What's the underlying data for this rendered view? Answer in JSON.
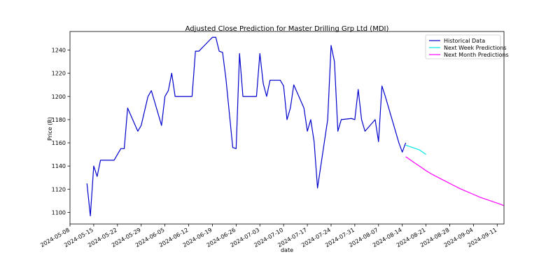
{
  "chart_data": {
    "type": "line",
    "title": "Adjusted Close Prediction for Master Drilling Grp Ltd (MDI)",
    "xlabel": "date",
    "ylabel": "Price (R)",
    "xlim": [
      "2024-05-08",
      "2024-09-13"
    ],
    "ylim": [
      1090,
      1256
    ],
    "x_ticks": [
      "2024-05-08",
      "2024-05-15",
      "2024-05-22",
      "2024-05-29",
      "2024-06-05",
      "2024-06-12",
      "2024-06-19",
      "2024-06-26",
      "2024-07-03",
      "2024-07-10",
      "2024-07-17",
      "2024-07-24",
      "2024-07-31",
      "2024-08-07",
      "2024-08-14",
      "2024-08-21",
      "2024-08-28",
      "2024-09-04",
      "2024-09-11"
    ],
    "y_ticks": [
      1100,
      1120,
      1140,
      1160,
      1180,
      1200,
      1220,
      1240
    ],
    "grid": false,
    "legend_position": "top-right",
    "series": [
      {
        "name": "Historical Data",
        "color": "#0000cc",
        "points": [
          [
            "2024-05-13",
            1125
          ],
          [
            "2024-05-14",
            1097
          ],
          [
            "2024-05-15",
            1140
          ],
          [
            "2024-05-16",
            1131
          ],
          [
            "2024-05-17",
            1145
          ],
          [
            "2024-05-20",
            1145
          ],
          [
            "2024-05-21",
            1145
          ],
          [
            "2024-05-23",
            1155
          ],
          [
            "2024-05-24",
            1155
          ],
          [
            "2024-05-25",
            1190
          ],
          [
            "2024-05-28",
            1170
          ],
          [
            "2024-05-29",
            1175
          ],
          [
            "2024-05-31",
            1200
          ],
          [
            "2024-06-01",
            1205
          ],
          [
            "2024-06-04",
            1175
          ],
          [
            "2024-06-05",
            1200
          ],
          [
            "2024-06-06",
            1205
          ],
          [
            "2024-06-07",
            1220
          ],
          [
            "2024-06-08",
            1200
          ],
          [
            "2024-06-11",
            1200
          ],
          [
            "2024-06-13",
            1200
          ],
          [
            "2024-06-14",
            1239
          ],
          [
            "2024-06-15",
            1239
          ],
          [
            "2024-06-18",
            1248
          ],
          [
            "2024-06-19",
            1251
          ],
          [
            "2024-06-20",
            1251
          ],
          [
            "2024-06-21",
            1239
          ],
          [
            "2024-06-22",
            1238
          ],
          [
            "2024-06-23",
            1215
          ],
          [
            "2024-06-25",
            1156
          ],
          [
            "2024-06-26",
            1155
          ],
          [
            "2024-06-27",
            1237
          ],
          [
            "2024-06-28",
            1200
          ],
          [
            "2024-07-02",
            1200
          ],
          [
            "2024-07-03",
            1237
          ],
          [
            "2024-07-04",
            1211
          ],
          [
            "2024-07-05",
            1200
          ],
          [
            "2024-07-06",
            1214
          ],
          [
            "2024-07-08",
            1214
          ],
          [
            "2024-07-09",
            1214
          ],
          [
            "2024-07-10",
            1209
          ],
          [
            "2024-07-11",
            1180
          ],
          [
            "2024-07-12",
            1190
          ],
          [
            "2024-07-13",
            1210
          ],
          [
            "2024-07-16",
            1190
          ],
          [
            "2024-07-17",
            1170
          ],
          [
            "2024-07-18",
            1180
          ],
          [
            "2024-07-19",
            1161
          ],
          [
            "2024-07-20",
            1121
          ],
          [
            "2024-07-23",
            1180
          ],
          [
            "2024-07-24",
            1244
          ],
          [
            "2024-07-25",
            1230
          ],
          [
            "2024-07-26",
            1170
          ],
          [
            "2024-07-27",
            1180
          ],
          [
            "2024-07-30",
            1181
          ],
          [
            "2024-07-31",
            1180
          ],
          [
            "2024-08-01",
            1206
          ],
          [
            "2024-08-02",
            1180
          ],
          [
            "2024-08-03",
            1170
          ],
          [
            "2024-08-06",
            1180
          ],
          [
            "2024-08-07",
            1161
          ],
          [
            "2024-08-08",
            1209
          ],
          [
            "2024-08-09",
            1200
          ],
          [
            "2024-08-13",
            1160
          ],
          [
            "2024-08-14",
            1152
          ],
          [
            "2024-08-15",
            1160
          ]
        ]
      },
      {
        "name": "Next Week Predictions",
        "color": "#00e6e6",
        "points": [
          [
            "2024-08-15",
            1158
          ],
          [
            "2024-08-16",
            1157
          ],
          [
            "2024-08-17",
            1156
          ],
          [
            "2024-08-18",
            1155
          ],
          [
            "2024-08-19",
            1154
          ],
          [
            "2024-08-20",
            1152
          ],
          [
            "2024-08-21",
            1150
          ]
        ]
      },
      {
        "name": "Next Month Predictions",
        "color": "#ff00ff",
        "points": [
          [
            "2024-08-15",
            1148
          ],
          [
            "2024-08-17",
            1144
          ],
          [
            "2024-08-19",
            1140
          ],
          [
            "2024-08-21",
            1136
          ],
          [
            "2024-08-23",
            1132.5
          ],
          [
            "2024-08-25",
            1129.5
          ],
          [
            "2024-08-27",
            1126.5
          ],
          [
            "2024-08-29",
            1123.5
          ],
          [
            "2024-08-31",
            1120.5
          ],
          [
            "2024-09-02",
            1118
          ],
          [
            "2024-09-04",
            1115.5
          ],
          [
            "2024-09-06",
            1113
          ],
          [
            "2024-09-08",
            1111
          ],
          [
            "2024-09-10",
            1109
          ],
          [
            "2024-09-12",
            1107
          ],
          [
            "2024-09-13",
            1105.8
          ]
        ]
      }
    ]
  }
}
